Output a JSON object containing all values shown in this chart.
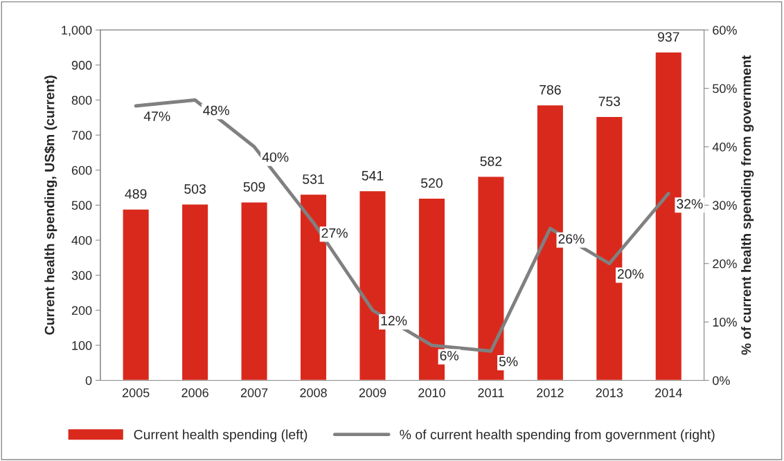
{
  "chart_data": {
    "type": "bar",
    "categories": [
      "2005",
      "2006",
      "2007",
      "2008",
      "2009",
      "2010",
      "2011",
      "2012",
      "2013",
      "2014"
    ],
    "series": [
      {
        "name": "Current health spending (left)",
        "color": "#d9291c",
        "values": [
          489,
          503,
          509,
          531,
          541,
          520,
          582,
          786,
          753,
          937
        ]
      },
      {
        "name": "% of current health spending from government (right)",
        "type": "line",
        "axis": "y2",
        "color": "#808080",
        "values": [
          47,
          48,
          40,
          27,
          12,
          6,
          5,
          26,
          20,
          32
        ],
        "value_labels": [
          "47%",
          "48%",
          "40%",
          "27%",
          "12%",
          "6%",
          "5%",
          "26%",
          "20%",
          "32%"
        ]
      }
    ],
    "ylabel": "Current health spending, US$m (current)",
    "y2label": "% of current health spending from government",
    "ylim": [
      0,
      1000
    ],
    "yticks": [
      0,
      100,
      200,
      300,
      400,
      500,
      600,
      700,
      800,
      900,
      {
        "value": 1000,
        "label": "1,000"
      }
    ],
    "y2lim": [
      0,
      60
    ],
    "y2ticks": [
      {
        "value": 0,
        "label": "0%"
      },
      {
        "value": 10,
        "label": "10%"
      },
      {
        "value": 20,
        "label": "20%"
      },
      {
        "value": 30,
        "label": "30%"
      },
      {
        "value": 40,
        "label": "40%"
      },
      {
        "value": 50,
        "label": "50%"
      },
      {
        "value": 60,
        "label": "60%"
      }
    ],
    "data_labels": true,
    "grid": false,
    "legend": "bottom",
    "marker": "none",
    "line_style": "solid"
  }
}
